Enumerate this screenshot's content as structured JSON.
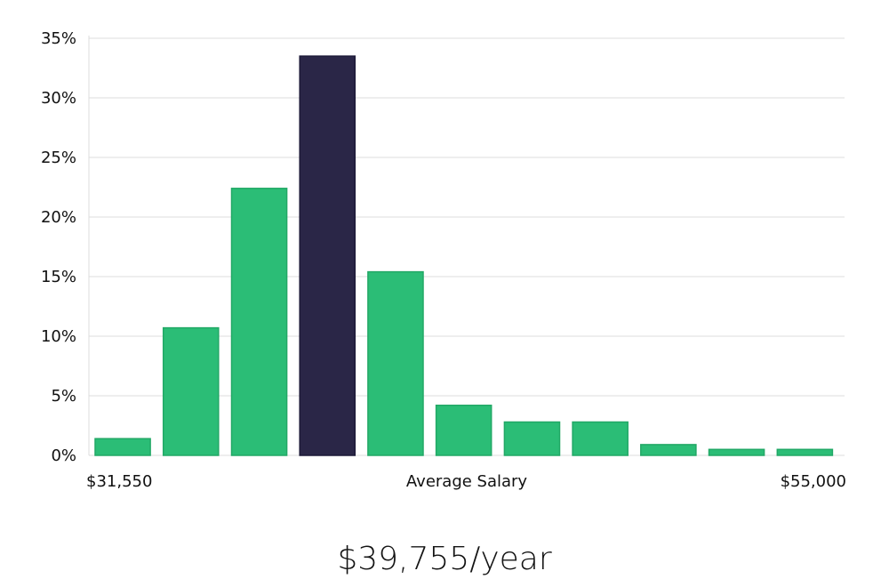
{
  "chart_data": {
    "type": "bar",
    "bins": 11,
    "values": [
      1.4,
      10.7,
      22.4,
      33.5,
      15.4,
      4.2,
      2.8,
      2.8,
      0.9,
      0.5,
      0.5
    ],
    "highlight_index": 3,
    "ylim": [
      0,
      35
    ],
    "y_ticks": [
      0,
      5,
      10,
      15,
      20,
      25,
      30,
      35
    ],
    "y_tick_format": "{v}%",
    "x_labels": {
      "left": "$31,550",
      "center": "Average Salary",
      "right": "$55,000"
    },
    "grid": true,
    "colors": {
      "bar": "#2bbd76",
      "bar_stroke": "#22a866",
      "highlight": "#2a2647",
      "highlight_stroke": "#1d1a38",
      "grid": "#dcdcdc"
    }
  },
  "headline": "$39,755/year"
}
